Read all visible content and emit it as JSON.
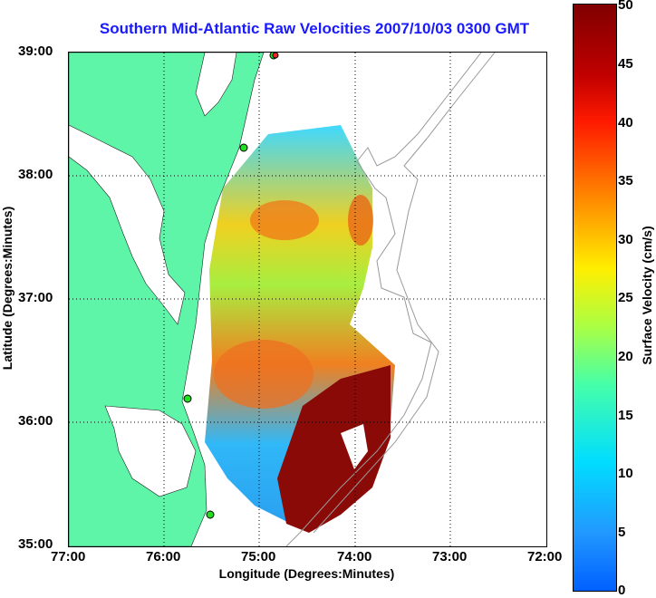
{
  "title": "Southern Mid-Atlantic Raw Velocities 2007/10/03 0300 GMT",
  "axes": {
    "xlabel": "Longitude (Degrees:Minutes)",
    "ylabel": "Latitude (Degrees:Minutes)",
    "x_ticks": [
      "77:00",
      "76:00",
      "75:00",
      "74:00",
      "73:00",
      "72:00"
    ],
    "y_ticks": [
      "39:00",
      "38:00",
      "37:00",
      "36:00",
      "35:00"
    ]
  },
  "colorbar": {
    "label": "Surface Velocity (cm/s)",
    "ticks": [
      "50",
      "45",
      "40",
      "35",
      "30",
      "25",
      "20",
      "15",
      "10",
      "5",
      "0"
    ],
    "range": [
      0,
      50
    ]
  },
  "colors": {
    "title": "#1a1aff",
    "land": "#5ff5a8",
    "station": "#22dd22",
    "station_alert": "#ff2020"
  }
}
